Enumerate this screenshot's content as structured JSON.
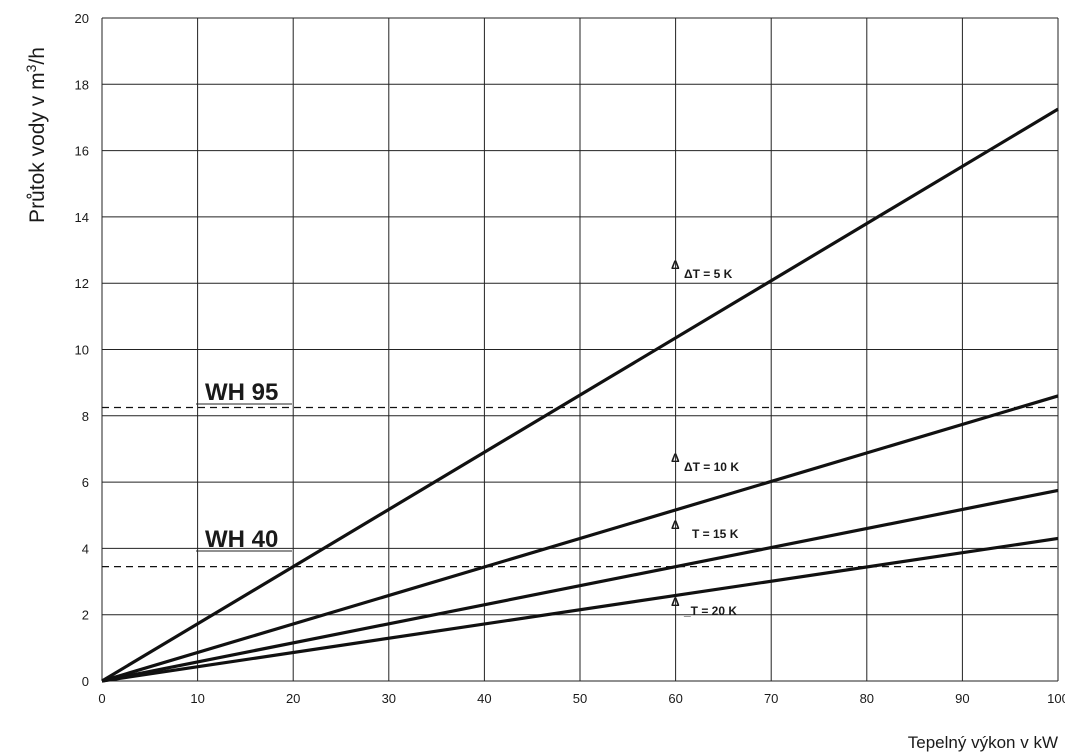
{
  "chart_data": {
    "type": "line",
    "title": "",
    "xlabel": "Tepelný výkon v kW",
    "ylabel": "Průtok vody v m3/h",
    "ylabel_parts": [
      "Průtok vody v m",
      "3",
      "/h"
    ],
    "xlim": [
      0,
      100
    ],
    "ylim": [
      0,
      20
    ],
    "xticks": [
      0,
      10,
      20,
      30,
      40,
      50,
      60,
      70,
      80,
      90,
      100
    ],
    "yticks": [
      0,
      2,
      4,
      6,
      8,
      10,
      12,
      14,
      16,
      18,
      20
    ],
    "grid": true,
    "legend": "none",
    "series": [
      {
        "name": "ΔT = 5 K",
        "x": [
          0,
          100
        ],
        "y": [
          0,
          17.25
        ],
        "label_parts": [
          "Δ",
          "ΔT = 5 K"
        ]
      },
      {
        "name": "ΔT = 10 K",
        "x": [
          0,
          100
        ],
        "y": [
          0,
          8.6
        ],
        "label_parts": [
          "Δ",
          "ΔT = 10 K"
        ]
      },
      {
        "name": "ΔT = 15 K",
        "x": [
          0,
          100
        ],
        "y": [
          0,
          5.75
        ],
        "label_parts": [
          "Δ",
          "T = 15 K"
        ]
      },
      {
        "name": "ΔT = 20 K",
        "x": [
          0,
          100
        ],
        "y": [
          0,
          4.3
        ],
        "label_parts": [
          "Δ",
          "_T = 20 K"
        ]
      }
    ],
    "reference_lines": [
      {
        "label": "WH 95",
        "y": 8.25,
        "style": "dashed"
      },
      {
        "label": "WH 40",
        "y": 3.45,
        "style": "dashed"
      }
    ]
  }
}
